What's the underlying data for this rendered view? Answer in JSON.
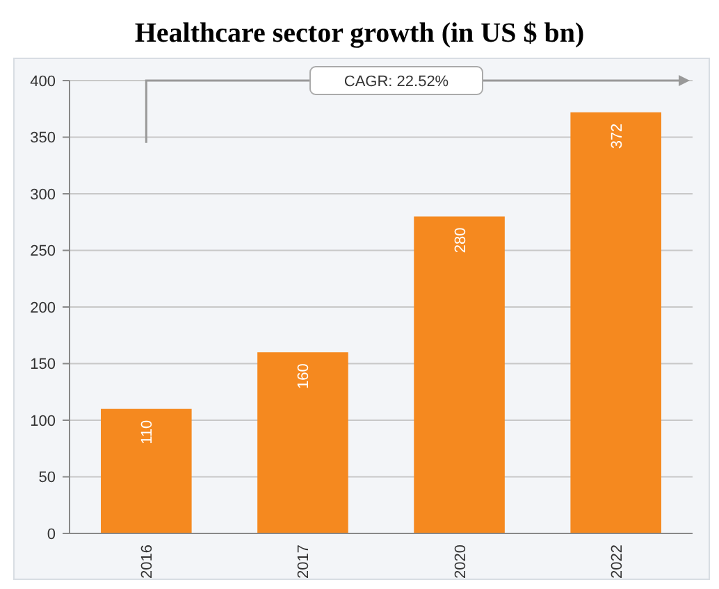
{
  "chart_data": {
    "type": "bar",
    "title": "Healthcare sector growth (in US $ bn)",
    "categories": [
      "2016",
      "2017",
      "2020",
      "2022"
    ],
    "values": [
      110,
      160,
      280,
      372
    ],
    "color": "#f5891f",
    "ylim": [
      0,
      400
    ],
    "yticks": [
      0,
      50,
      100,
      150,
      200,
      250,
      300,
      350,
      400
    ],
    "grid": "y",
    "data_labels": true,
    "annotations": [
      "CAGR: 22.52%"
    ]
  }
}
